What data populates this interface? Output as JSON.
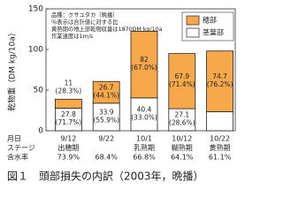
{
  "chart_data": {
    "type": "stacked-bar",
    "y_label": "乾物重（DM kg/10a）",
    "notes": [
      "品種：クサユタカ（晩播）",
      "％表示は合計値に対する比",
      "黄熟期の地上部乾物収量は1870DM·kg/10a",
      "作業速度は1m/s"
    ],
    "categories": [
      "9/12",
      "9/22",
      "10/1",
      "10/12",
      "10/22"
    ],
    "series": [
      {
        "name": "茎葉部",
        "color": "#ffffff",
        "values": [
          27.8,
          33.9,
          40.4,
          27.1,
          23.4
        ],
        "share_labels": [
          "(71.7%)",
          "(55.9%)",
          "(33.0%)",
          "(28.6%)",
          "(23.8%)"
        ]
      },
      {
        "name": "穂部",
        "color": "#f7a84a",
        "values": [
          11.0,
          26.7,
          82.0,
          67.9,
          74.7
        ],
        "share_labels": [
          "(28.3%)",
          "(44.1%)",
          "(67.0%)",
          "(71.4%)",
          "(76.2%)"
        ]
      }
    ],
    "ylim": [
      0,
      150
    ],
    "yticks": [
      0,
      50,
      100,
      150
    ],
    "legend": "upper right",
    "table": {
      "row_labels": [
        "月日",
        "ステージ",
        "含水率"
      ],
      "stages": [
        "出穂期",
        null,
        "乳熟期",
        "糊熟期",
        "黄熟期"
      ],
      "moisture": [
        "73.9%",
        "68.4%",
        "66.8%",
        "64.1%",
        "61.1%"
      ]
    },
    "caption": "図１　頭部損失の内訳（2003年，晩播）"
  }
}
